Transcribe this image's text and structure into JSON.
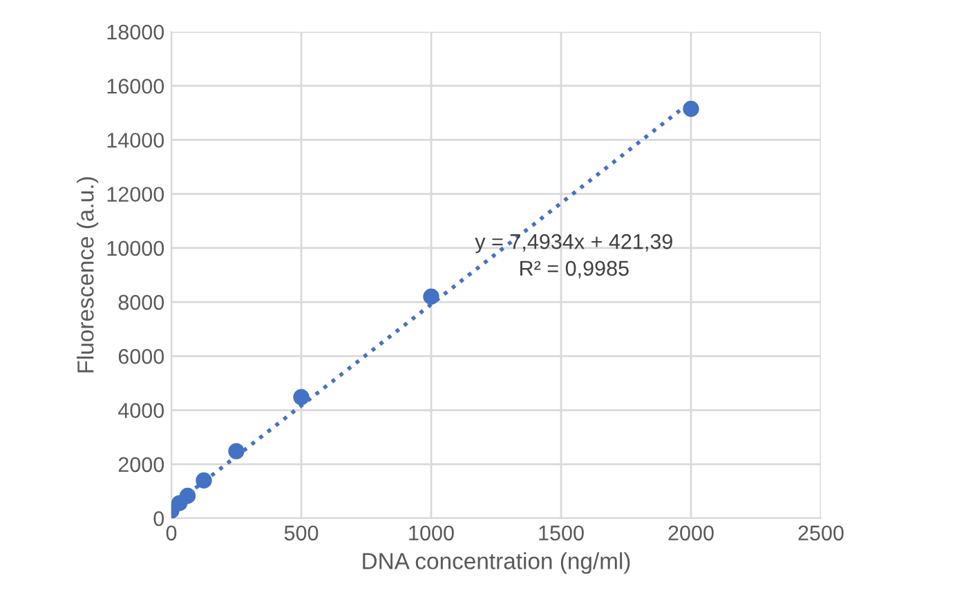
{
  "chart_data": {
    "type": "scatter",
    "xlabel": "DNA concentration (ng/ml)",
    "ylabel": "Fluorescence (a.u.)",
    "series": [
      {
        "color": "#4472c4",
        "marker": "circle",
        "x": [
          0,
          31.25,
          62.5,
          125,
          250,
          500,
          1000,
          2000
        ],
        "values": [
          280,
          560,
          830,
          1400,
          2480,
          4480,
          8200,
          15150
        ]
      },
      {
        "type": "line",
        "color": "#4472c4",
        "line_style": "dotted",
        "marker": "none",
        "x": [
          0,
          2000
        ],
        "values": [
          420,
          15410
        ]
      }
    ],
    "annotations": [
      "y = 7,4934x + 421,39",
      "R² = 0,9985"
    ],
    "xlim": [
      0,
      2500
    ],
    "xticks": [
      0,
      500,
      1000,
      1500,
      2000,
      2500
    ],
    "ylim": [
      0,
      18000
    ],
    "yticks": [
      0,
      2000,
      4000,
      6000,
      8000,
      10000,
      12000,
      14000,
      16000,
      18000
    ],
    "grid": true
  }
}
